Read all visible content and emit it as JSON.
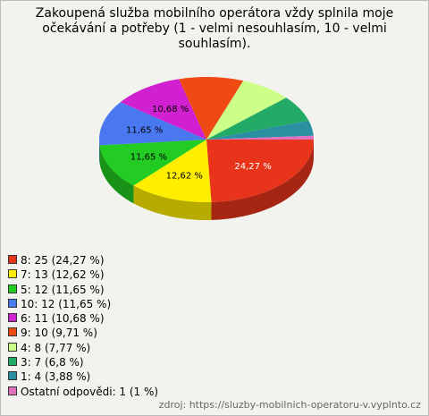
{
  "chart_data": {
    "type": "pie",
    "title": "Zakoupená služba mobilního operátora vždy splnila moje očekávání a potřeby (1 - velmi nesouhlasím, 10 - velmi souhlasím).",
    "categories": [
      "8: 25 (24,27 %)",
      "7: 13 (12,62 %)",
      "5: 12 (11,65 %)",
      "10: 12 (11,65 %)",
      "6: 11 (10,68 %)",
      "9: 10 (9,71 %)",
      "4: 8 (7,77 %)",
      "3: 7 (6,8 %)",
      "1: 4 (3,88 %)",
      "Ostatní odpovědi: 1 (1 %)"
    ],
    "values": [
      24.27,
      12.62,
      11.65,
      11.65,
      10.68,
      9.71,
      7.77,
      6.8,
      3.88,
      0.97
    ],
    "value_labels": [
      "24,27 %",
      "12,62 %",
      "11,65 %",
      "11,65 %",
      "10,68 %",
      null,
      null,
      null,
      null,
      null
    ],
    "colors": [
      "#e8341a",
      "#ffee00",
      "#22cc22",
      "#4a78f0",
      "#d020d0",
      "#f04a14",
      "#ccff88",
      "#22aa66",
      "#2a8fa0",
      "#e070c0"
    ],
    "source": "zdroj: https://sluzby-mobilnich-operatoru-v.vyplnto.cz"
  }
}
